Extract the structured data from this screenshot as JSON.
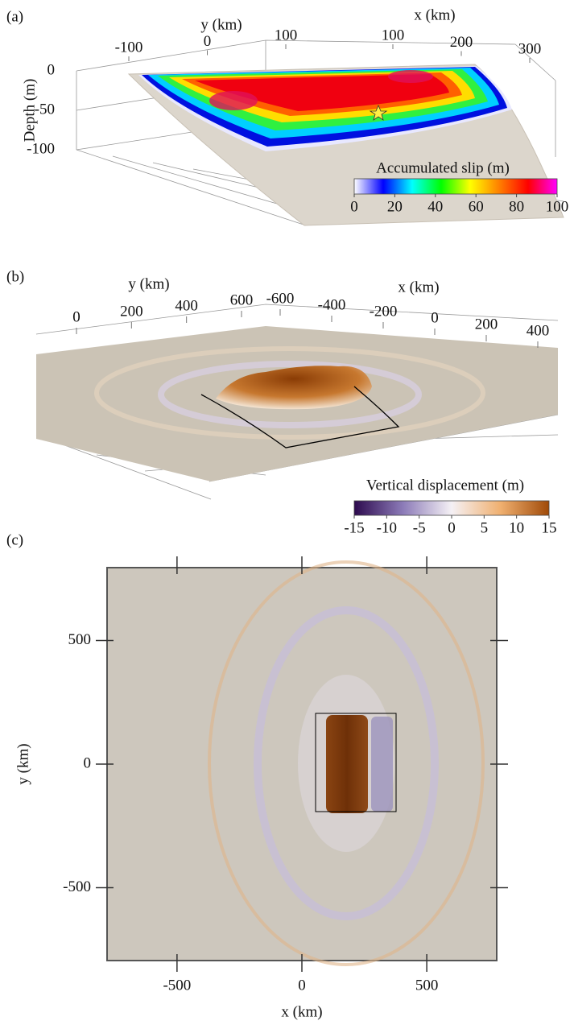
{
  "chart_data": [
    {
      "type": "surface",
      "panel_label": "(a)",
      "xlabel": "x (km)",
      "ylabel": "y (km)",
      "zlabel": "Depth (m)",
      "xticks": [
        100,
        200,
        300
      ],
      "yticks": [
        -100,
        0,
        100
      ],
      "zticks": [
        0,
        -50,
        -100
      ],
      "colorbar": {
        "label": "Accumulated slip (m)",
        "lim": [
          0,
          100
        ],
        "ticks": [
          0,
          20,
          40,
          60,
          80,
          100
        ],
        "colors": [
          "#ffffff",
          "#0000ff",
          "#00ffff",
          "#00ff00",
          "#ffff00",
          "#ff8000",
          "#ff0000",
          "#ff00ff"
        ]
      }
    },
    {
      "type": "surface",
      "panel_label": "(b)",
      "xlabel": "x (km)",
      "ylabel": "y (km)",
      "xticks": [
        -600,
        -400,
        -200,
        0,
        200,
        400
      ],
      "yticks": [
        0,
        200,
        400,
        600
      ],
      "colorbar": {
        "label": "Vertical displacement (m)",
        "lim": [
          -15,
          15
        ],
        "ticks": [
          -15,
          -10,
          -5,
          0,
          5,
          10,
          15
        ],
        "colors": [
          "#2d0a4e",
          "#8c7bb8",
          "#f5f1f5",
          "#f0b070",
          "#a04a08"
        ]
      }
    },
    {
      "type": "heatmap",
      "panel_label": "(c)",
      "xlabel": "x (km)",
      "ylabel": "y (km)",
      "xlim": [
        -780,
        780
      ],
      "ylim": [
        -795,
        795
      ],
      "xticks": [
        -500,
        0,
        500
      ],
      "yticks": [
        -500,
        0,
        500
      ]
    }
  ]
}
